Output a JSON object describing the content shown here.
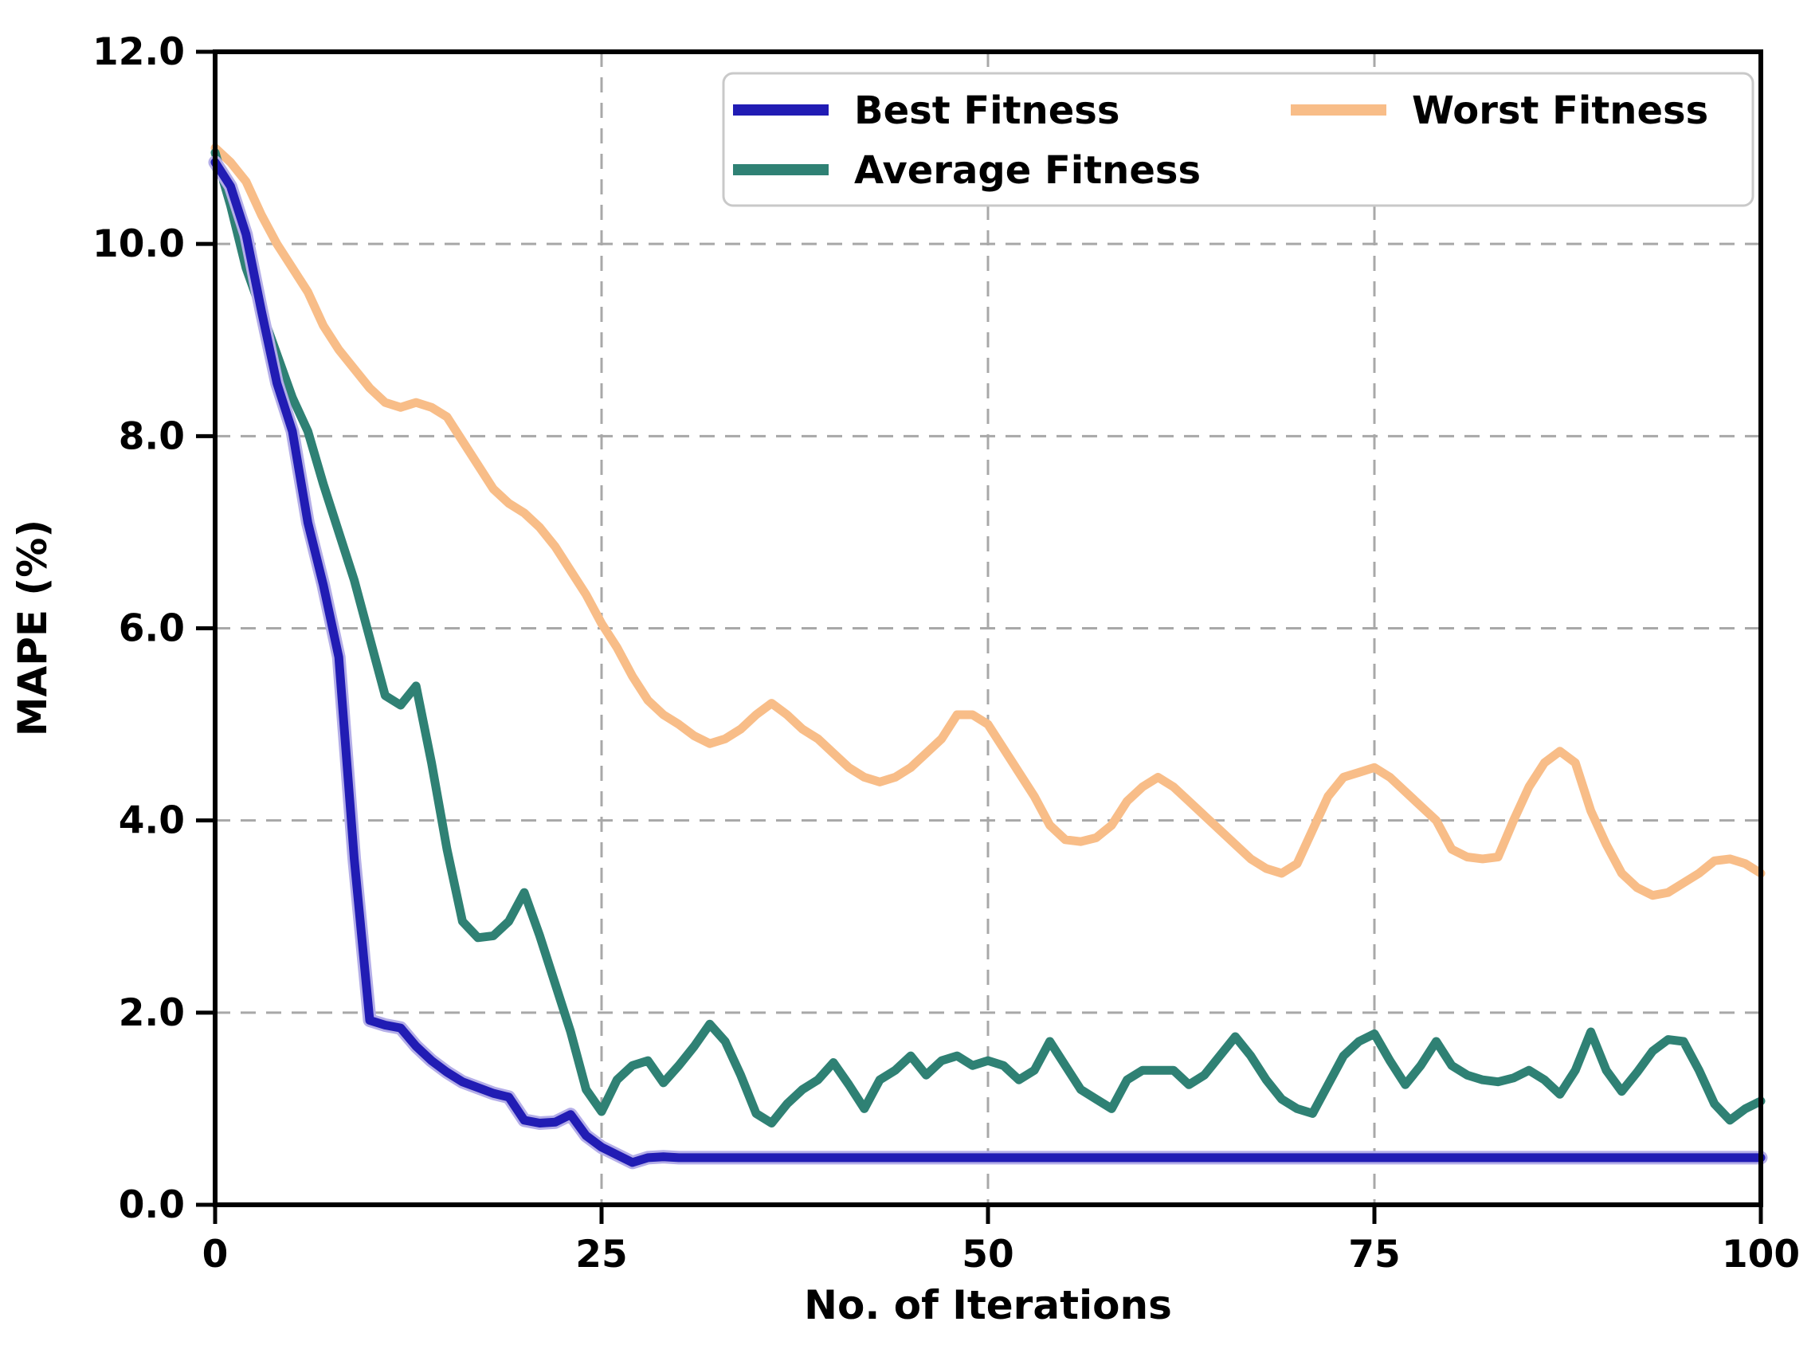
{
  "chart_data": {
    "type": "line",
    "title": "",
    "xlabel": "No. of Iterations",
    "ylabel": "MAPE (%)",
    "xlim": [
      0,
      100
    ],
    "ylim": [
      0,
      12
    ],
    "xticks": [
      0,
      25,
      50,
      75,
      100
    ],
    "ytick_labels": [
      "0.0",
      "2.0",
      "4.0",
      "6.0",
      "8.0",
      "10.0",
      "12.0"
    ],
    "yticks": [
      0,
      2,
      4,
      6,
      8,
      10,
      12
    ],
    "grid": "dashed",
    "grid_color": "#a8a8a8",
    "spine_color": "#000000",
    "legend_position": "upper center",
    "legend_border_color": "#c9c9c9",
    "x_start": 0,
    "x_step": 1,
    "series": [
      {
        "name": "Best Fitness",
        "color": "#211cb4",
        "halo_color": "#b4aee8",
        "values": [
          10.85,
          10.6,
          10.1,
          9.3,
          8.55,
          8.05,
          7.1,
          6.45,
          5.7,
          3.6,
          1.92,
          1.87,
          1.84,
          1.65,
          1.5,
          1.38,
          1.28,
          1.22,
          1.16,
          1.12,
          0.88,
          0.85,
          0.86,
          0.94,
          0.72,
          0.6,
          0.52,
          0.44,
          0.49,
          0.5,
          0.49,
          0.49,
          0.49,
          0.49,
          0.49,
          0.49,
          0.49,
          0.49,
          0.49,
          0.49,
          0.49,
          0.49,
          0.49,
          0.49,
          0.49,
          0.49,
          0.49,
          0.49,
          0.49,
          0.49,
          0.49,
          0.49,
          0.49,
          0.49,
          0.49,
          0.49,
          0.49,
          0.49,
          0.49,
          0.49,
          0.49,
          0.49,
          0.49,
          0.49,
          0.49,
          0.49,
          0.49,
          0.49,
          0.49,
          0.49,
          0.49,
          0.49,
          0.49,
          0.49,
          0.49,
          0.49,
          0.49,
          0.49,
          0.49,
          0.49,
          0.49,
          0.49,
          0.49,
          0.49,
          0.49,
          0.49,
          0.49,
          0.49,
          0.49,
          0.49,
          0.49,
          0.49,
          0.49,
          0.49,
          0.49,
          0.49,
          0.49,
          0.49,
          0.49,
          0.49,
          0.49
        ]
      },
      {
        "name": "Average Fitness",
        "color": "#2f8174",
        "halo_color": "",
        "values": [
          10.95,
          10.4,
          9.75,
          9.3,
          8.85,
          8.4,
          8.05,
          7.5,
          7.0,
          6.5,
          5.9,
          5.3,
          5.2,
          5.4,
          4.6,
          3.7,
          2.95,
          2.78,
          2.8,
          2.95,
          3.25,
          2.8,
          2.3,
          1.8,
          1.2,
          0.97,
          1.3,
          1.45,
          1.5,
          1.27,
          1.45,
          1.65,
          1.88,
          1.7,
          1.35,
          0.95,
          0.85,
          1.05,
          1.2,
          1.3,
          1.48,
          1.25,
          1.0,
          1.3,
          1.4,
          1.55,
          1.35,
          1.5,
          1.55,
          1.45,
          1.5,
          1.45,
          1.3,
          1.4,
          1.7,
          1.45,
          1.2,
          1.1,
          1.0,
          1.3,
          1.4,
          1.4,
          1.4,
          1.25,
          1.35,
          1.55,
          1.75,
          1.55,
          1.3,
          1.1,
          1.0,
          0.95,
          1.25,
          1.55,
          1.7,
          1.78,
          1.5,
          1.25,
          1.45,
          1.7,
          1.45,
          1.35,
          1.3,
          1.28,
          1.32,
          1.4,
          1.3,
          1.15,
          1.4,
          1.8,
          1.4,
          1.18,
          1.38,
          1.6,
          1.72,
          1.7,
          1.4,
          1.05,
          0.88,
          1.0,
          1.08
        ]
      },
      {
        "name": "Worst Fitness",
        "color": "#f8bd88",
        "halo_color": "",
        "values": [
          11.0,
          10.85,
          10.65,
          10.3,
          10.0,
          9.75,
          9.5,
          9.15,
          8.9,
          8.7,
          8.5,
          8.35,
          8.3,
          8.35,
          8.3,
          8.2,
          7.95,
          7.7,
          7.45,
          7.3,
          7.2,
          7.05,
          6.85,
          6.6,
          6.35,
          6.05,
          5.8,
          5.5,
          5.25,
          5.1,
          5.0,
          4.88,
          4.8,
          4.85,
          4.95,
          5.1,
          5.22,
          5.1,
          4.95,
          4.85,
          4.7,
          4.55,
          4.45,
          4.4,
          4.45,
          4.55,
          4.7,
          4.85,
          5.1,
          5.1,
          5.0,
          4.75,
          4.5,
          4.25,
          3.95,
          3.8,
          3.78,
          3.82,
          3.95,
          4.2,
          4.35,
          4.45,
          4.35,
          4.2,
          4.05,
          3.9,
          3.75,
          3.6,
          3.5,
          3.45,
          3.55,
          3.9,
          4.25,
          4.45,
          4.5,
          4.55,
          4.45,
          4.3,
          4.15,
          4.0,
          3.7,
          3.62,
          3.6,
          3.62,
          4.0,
          4.35,
          4.6,
          4.72,
          4.6,
          4.1,
          3.75,
          3.45,
          3.3,
          3.22,
          3.25,
          3.35,
          3.45,
          3.58,
          3.6,
          3.55,
          3.45
        ]
      }
    ]
  }
}
